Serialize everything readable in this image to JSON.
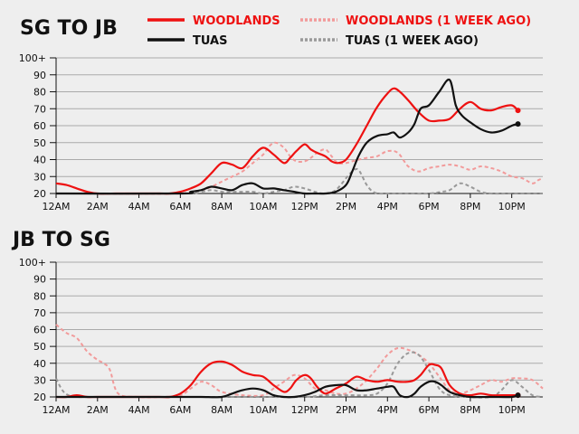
{
  "legend": [
    {
      "name": "WOODLANDS",
      "color": "#ee1111",
      "style": "solid"
    },
    {
      "name": "WOODLANDS (1 WEEK AGO)",
      "color": "#f29a9a",
      "style": "dashed"
    },
    {
      "name": "TUAS",
      "color": "#111111",
      "style": "solid"
    },
    {
      "name": "TUAS (1 WEEK AGO)",
      "color": "#999999",
      "style": "dashed"
    }
  ],
  "legend_text_colors": [
    "#ee1111",
    "#ee1111",
    "#111111",
    "#111111"
  ],
  "chart_data": [
    {
      "type": "line",
      "title": "SG TO JB",
      "x_unit": "hour of day",
      "x_ticks": [
        0,
        2,
        4,
        6,
        8,
        10,
        12,
        14,
        16,
        18,
        20,
        22
      ],
      "x_tick_labels": [
        "12AM",
        "2AM",
        "4AM",
        "6AM",
        "8AM",
        "10AM",
        "12PM",
        "2PM",
        "4PM",
        "6PM",
        "8PM",
        "10PM"
      ],
      "xlim": [
        0,
        23.5
      ],
      "ylim": [
        20,
        100
      ],
      "y_ticks": [
        20,
        30,
        40,
        50,
        60,
        70,
        80,
        90,
        100
      ],
      "y_tick_labels": [
        "20",
        "30",
        "40",
        "50",
        "60",
        "70",
        "80",
        "90",
        "100+"
      ],
      "grid": true,
      "series": [
        {
          "name": "WOODLANDS (1 WEEK AGO)",
          "style": "dashed",
          "color": "#f29a9a",
          "x": [
            0,
            2,
            4,
            6,
            6.5,
            7,
            7.5,
            8,
            8.5,
            9,
            9.5,
            10,
            10.3,
            10.6,
            11,
            11.3,
            11.6,
            12,
            12.3,
            12.6,
            13,
            13.3,
            13.6,
            14,
            14.3,
            14.6,
            15,
            15.5,
            16,
            16.5,
            17,
            17.5,
            18,
            18.5,
            19,
            19.5,
            20,
            20.5,
            21,
            21.5,
            22,
            22.5,
            23,
            23.3,
            23.5
          ],
          "y": [
            20,
            20,
            20,
            20,
            21,
            22,
            24,
            27,
            30,
            33,
            38,
            43,
            48,
            50,
            47,
            42,
            39,
            39,
            41,
            44,
            46,
            42,
            38,
            38,
            39,
            40,
            41,
            42,
            45,
            44,
            36,
            33,
            35,
            36,
            37,
            36,
            34,
            36,
            35,
            33,
            30,
            29,
            26,
            28,
            29
          ]
        },
        {
          "name": "TUAS (1 WEEK AGO)",
          "style": "dashed",
          "color": "#999999",
          "x": [
            0,
            6,
            7,
            7.5,
            8,
            8.5,
            9,
            9.5,
            10,
            10.5,
            11,
            11.5,
            12,
            12.5,
            13,
            13.5,
            14,
            14.3,
            14.6,
            15,
            15.3,
            15.6,
            16,
            17,
            18,
            18.6,
            19,
            19.5,
            20,
            20.5,
            21,
            22,
            23.5
          ],
          "y": [
            20,
            20,
            21,
            22,
            21,
            21,
            21,
            21,
            20,
            21,
            22,
            24,
            23,
            21,
            20,
            22,
            29,
            33,
            34,
            25,
            21,
            20,
            20,
            20,
            20,
            21,
            22,
            26,
            24,
            21,
            20,
            20,
            20
          ]
        },
        {
          "name": "WOODLANDS",
          "style": "solid",
          "color": "#ee1111",
          "x": [
            0,
            0.5,
            1,
            1.5,
            2,
            3,
            4,
            5,
            5.5,
            6,
            6.5,
            7,
            7.5,
            8,
            8.5,
            9,
            9.5,
            10,
            10.5,
            11,
            11.3,
            11.6,
            12,
            12.3,
            12.6,
            13,
            13.3,
            13.6,
            14,
            14.5,
            15,
            15.5,
            16,
            16.3,
            16.6,
            17,
            17.5,
            18,
            18.5,
            19,
            19.5,
            20,
            20.5,
            21,
            21.5,
            22,
            22.3
          ],
          "y": [
            26,
            25,
            23,
            21,
            20,
            20,
            20,
            20,
            20,
            21,
            23,
            26,
            32,
            38,
            37,
            35,
            42,
            47,
            43,
            38,
            41,
            45,
            49,
            46,
            44,
            42,
            39,
            38,
            40,
            49,
            60,
            71,
            79,
            82,
            80,
            75,
            68,
            63,
            63,
            64,
            70,
            74,
            70,
            69,
            71,
            72,
            69
          ]
        },
        {
          "name": "TUAS",
          "style": "solid",
          "color": "#111111",
          "x": [
            0,
            6,
            6.5,
            7,
            7.5,
            8,
            8.5,
            9,
            9.5,
            10,
            10.5,
            11,
            11.5,
            12,
            12.5,
            13,
            13.5,
            14,
            14.3,
            14.6,
            15,
            15.5,
            16,
            16.3,
            16.6,
            17,
            17.3,
            17.6,
            18,
            18.5,
            19,
            19.3,
            19.6,
            20,
            20.5,
            21,
            21.5,
            22,
            22.3
          ],
          "y": [
            20,
            20,
            21,
            22,
            24,
            23,
            22,
            25,
            26,
            23,
            23,
            22,
            21,
            20,
            20,
            20,
            21,
            25,
            33,
            42,
            50,
            54,
            55,
            56,
            53,
            56,
            61,
            70,
            72,
            80,
            87,
            72,
            66,
            62,
            58,
            56,
            57,
            60,
            61
          ]
        }
      ]
    },
    {
      "type": "line",
      "title": "JB TO SG",
      "x_unit": "hour of day",
      "x_ticks": [
        0,
        2,
        4,
        6,
        8,
        10,
        12,
        14,
        16,
        18,
        20,
        22
      ],
      "x_tick_labels": [
        "12AM",
        "2AM",
        "4AM",
        "6AM",
        "8AM",
        "10AM",
        "12PM",
        "2PM",
        "4PM",
        "6PM",
        "8PM",
        "10PM"
      ],
      "xlim": [
        0,
        23.5
      ],
      "ylim": [
        20,
        100
      ],
      "y_ticks": [
        20,
        30,
        40,
        50,
        60,
        70,
        80,
        90,
        100
      ],
      "y_tick_labels": [
        "20",
        "30",
        "40",
        "50",
        "60",
        "70",
        "80",
        "90",
        "100+"
      ],
      "grid": true,
      "series": [
        {
          "name": "WOODLANDS (1 WEEK AGO)",
          "style": "dashed",
          "color": "#f29a9a",
          "x": [
            0,
            0.5,
            1,
            1.5,
            2,
            2.3,
            2.6,
            3,
            4,
            5,
            6,
            6.5,
            7,
            7.5,
            8,
            9,
            10,
            10.5,
            11,
            11.5,
            12,
            12.5,
            13,
            13.5,
            14,
            14.5,
            15,
            15.5,
            16,
            16.5,
            17,
            17.5,
            18,
            18.5,
            19,
            19.5,
            20,
            20.5,
            21,
            21.5,
            22,
            22.5,
            23,
            23.5
          ],
          "y": [
            63,
            58,
            55,
            47,
            42,
            40,
            36,
            22,
            20,
            20,
            21,
            25,
            29,
            27,
            23,
            21,
            21,
            25,
            29,
            33,
            31,
            25,
            24,
            22,
            22,
            25,
            30,
            37,
            45,
            49,
            48,
            45,
            40,
            32,
            24,
            22,
            24,
            27,
            30,
            29,
            31,
            31,
            30,
            25
          ]
        },
        {
          "name": "TUAS (1 WEEK AGO)",
          "style": "dashed",
          "color": "#999999",
          "x": [
            0,
            0.3,
            0.6,
            1,
            2,
            4,
            6,
            8,
            10,
            12,
            13,
            14,
            15,
            15.5,
            16,
            16.5,
            17,
            17.5,
            18,
            18.5,
            19,
            20,
            21,
            21.5,
            22,
            22.5,
            23,
            23.5
          ],
          "y": [
            31,
            24,
            21,
            20,
            20,
            20,
            20,
            20,
            20,
            20,
            21,
            21,
            21,
            22,
            28,
            40,
            46,
            45,
            36,
            25,
            21,
            20,
            20,
            24,
            30,
            26,
            21,
            20
          ]
        },
        {
          "name": "WOODLANDS",
          "style": "solid",
          "color": "#ee1111",
          "x": [
            0,
            0.5,
            1,
            1.5,
            2,
            3,
            4,
            5,
            5.5,
            6,
            6.5,
            7,
            7.5,
            8,
            8.5,
            9,
            9.5,
            10,
            10.5,
            11,
            11.3,
            11.6,
            12,
            12.3,
            12.6,
            13,
            13.5,
            14,
            14.5,
            15,
            15.5,
            16,
            16.5,
            17,
            17.3,
            17.6,
            18,
            18.3,
            18.6,
            19,
            19.5,
            20,
            20.5,
            21,
            21.5,
            22,
            22.3
          ],
          "y": [
            20,
            20,
            21,
            20,
            20,
            20,
            20,
            20,
            20,
            22,
            27,
            35,
            40,
            41,
            39,
            35,
            33,
            32,
            27,
            23,
            25,
            30,
            33,
            31,
            26,
            22,
            25,
            28,
            32,
            30,
            29,
            30,
            29,
            29,
            30,
            33,
            39,
            39,
            37,
            27,
            22,
            21,
            22,
            21,
            21,
            21,
            21
          ]
        },
        {
          "name": "TUAS",
          "style": "solid",
          "color": "#111111",
          "x": [
            0,
            2,
            4,
            6,
            7,
            8,
            8.5,
            9,
            9.5,
            10,
            10.5,
            11,
            11.5,
            12,
            12.5,
            13,
            13.5,
            14,
            14.5,
            15,
            15.5,
            16,
            16.3,
            16.6,
            17,
            17.3,
            17.6,
            18,
            18.3,
            18.6,
            19,
            19.5,
            20,
            21,
            22,
            22.3
          ],
          "y": [
            20,
            20,
            20,
            20,
            20,
            20,
            22,
            24,
            25,
            24,
            21,
            20,
            20,
            21,
            23,
            26,
            27,
            27,
            24,
            24,
            25,
            26,
            26,
            21,
            20,
            22,
            26,
            29,
            29,
            27,
            23,
            21,
            20,
            20,
            20,
            21
          ]
        }
      ]
    }
  ]
}
